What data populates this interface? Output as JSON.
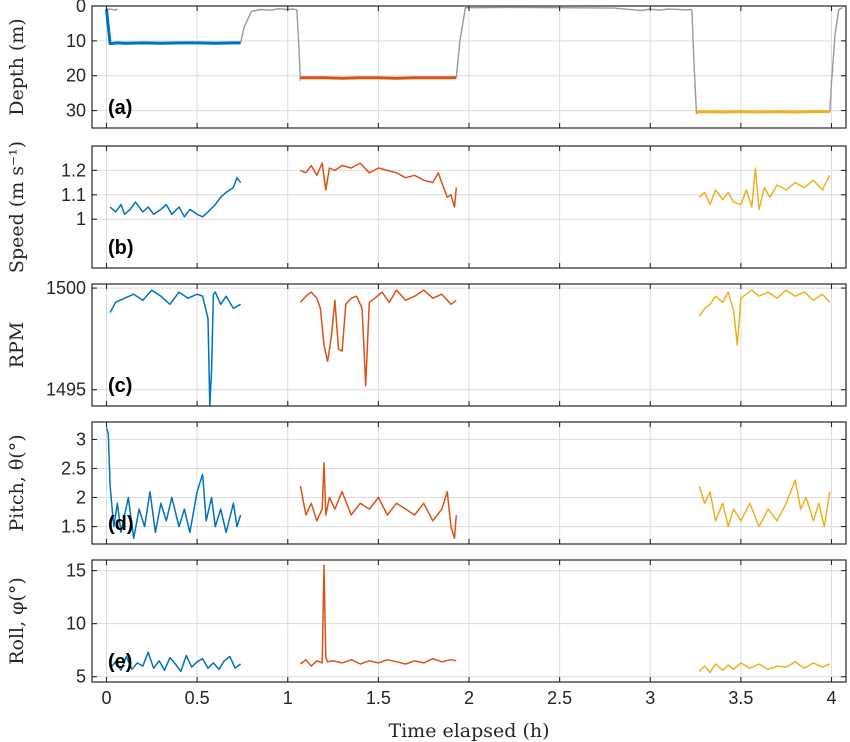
{
  "chart_data": [
    {
      "type": "line",
      "panel_tag": "(a)",
      "ylabel": "Depth (m)",
      "ylim": [
        0,
        35
      ],
      "y_reversed": true,
      "y_ticks": [
        0,
        10,
        20,
        30
      ],
      "y_tick_labels": [
        "0",
        "10",
        "20",
        "30"
      ],
      "series": [
        {
          "color": "#999999",
          "x": [
            0,
            0.01,
            0.02,
            0.05,
            0.06
          ],
          "y": [
            0.7,
            1.0,
            0.9,
            1.2,
            0.8
          ]
        },
        {
          "color": "#999999",
          "x": [
            0.74,
            0.76,
            0.8,
            0.85,
            0.9,
            0.95,
            1.0,
            1.03,
            1.05
          ],
          "y": [
            10.5,
            6,
            1.5,
            1.0,
            1.2,
            0.8,
            1.0,
            0.9,
            1.1
          ]
        },
        {
          "color": "#999999",
          "x": [
            1.05,
            1.06,
            1.07
          ],
          "y": [
            1.0,
            10,
            21.5
          ]
        },
        {
          "color": "#999999",
          "x": [
            1.93,
            1.95,
            1.98,
            2.05,
            2.2,
            2.5,
            2.8,
            2.95,
            3.0,
            3.05,
            3.1,
            3.2,
            3.23
          ],
          "y": [
            20.5,
            10,
            0.5,
            0.5,
            0.4,
            0.5,
            0.6,
            1.3,
            0.9,
            1.2,
            0.9,
            1.1,
            1.0
          ]
        },
        {
          "color": "#999999",
          "x": [
            3.23,
            3.24,
            3.255
          ],
          "y": [
            1.0,
            15,
            31
          ]
        },
        {
          "color": "#999999",
          "x": [
            3.99,
            4.0,
            4.02,
            4.04,
            4.06
          ],
          "y": [
            30.5,
            22,
            8,
            1.0,
            0.5
          ]
        },
        {
          "color": "#0072BD",
          "x": [
            0.0,
            0.02,
            0.06,
            0.1,
            0.2,
            0.3,
            0.4,
            0.5,
            0.6,
            0.7,
            0.74
          ],
          "y": [
            1.0,
            10.8,
            10.6,
            10.7,
            10.6,
            10.7,
            10.6,
            10.6,
            10.7,
            10.6,
            10.6
          ]
        },
        {
          "color": "#D95319",
          "x": [
            1.07,
            1.2,
            1.3,
            1.4,
            1.5,
            1.6,
            1.7,
            1.8,
            1.93
          ],
          "y": [
            20.6,
            20.6,
            20.7,
            20.6,
            20.6,
            20.7,
            20.6,
            20.6,
            20.6
          ]
        },
        {
          "color": "#EDB120",
          "x": [
            3.255,
            3.3,
            3.4,
            3.5,
            3.6,
            3.7,
            3.8,
            3.9,
            3.99
          ],
          "y": [
            30.4,
            30.3,
            30.4,
            30.3,
            30.4,
            30.3,
            30.4,
            30.3,
            30.3
          ]
        }
      ]
    },
    {
      "type": "line",
      "panel_tag": "(b)",
      "ylabel": "Speed (m s⁻¹)",
      "ylim": [
        0.8,
        1.3
      ],
      "y_ticks": [
        1.0,
        1.1,
        1.2
      ],
      "y_tick_labels": [
        "1",
        "1.1",
        "1.2"
      ],
      "series": [
        {
          "color": "#0072BD",
          "x": [
            0.02,
            0.05,
            0.08,
            0.1,
            0.13,
            0.16,
            0.2,
            0.23,
            0.26,
            0.3,
            0.33,
            0.36,
            0.4,
            0.43,
            0.46,
            0.5,
            0.53,
            0.56,
            0.6,
            0.63,
            0.66,
            0.7,
            0.72,
            0.74
          ],
          "y": [
            1.05,
            1.03,
            1.06,
            1.02,
            1.04,
            1.07,
            1.03,
            1.05,
            1.02,
            1.04,
            1.06,
            1.02,
            1.05,
            1.01,
            1.04,
            1.02,
            1.01,
            1.03,
            1.06,
            1.09,
            1.11,
            1.13,
            1.17,
            1.15
          ]
        },
        {
          "color": "#D95319",
          "x": [
            1.07,
            1.1,
            1.13,
            1.16,
            1.19,
            1.21,
            1.23,
            1.26,
            1.3,
            1.35,
            1.4,
            1.45,
            1.5,
            1.55,
            1.6,
            1.65,
            1.7,
            1.75,
            1.8,
            1.83,
            1.86,
            1.88,
            1.9,
            1.92,
            1.93
          ],
          "y": [
            1.2,
            1.19,
            1.22,
            1.18,
            1.23,
            1.12,
            1.21,
            1.2,
            1.22,
            1.21,
            1.23,
            1.19,
            1.21,
            1.2,
            1.19,
            1.17,
            1.18,
            1.16,
            1.15,
            1.19,
            1.13,
            1.09,
            1.1,
            1.05,
            1.13
          ]
        },
        {
          "color": "#EDB120",
          "x": [
            3.27,
            3.3,
            3.33,
            3.36,
            3.4,
            3.43,
            3.46,
            3.5,
            3.53,
            3.56,
            3.58,
            3.6,
            3.63,
            3.66,
            3.7,
            3.75,
            3.8,
            3.85,
            3.9,
            3.95,
            3.99
          ],
          "y": [
            1.09,
            1.11,
            1.06,
            1.12,
            1.08,
            1.11,
            1.07,
            1.06,
            1.12,
            1.05,
            1.21,
            1.04,
            1.13,
            1.09,
            1.14,
            1.12,
            1.15,
            1.13,
            1.16,
            1.12,
            1.18
          ]
        }
      ]
    },
    {
      "type": "line",
      "panel_tag": "(c)",
      "ylabel": "RPM",
      "ylim": [
        1494.2,
        1500.2
      ],
      "y_ticks": [
        1495,
        1500
      ],
      "y_tick_labels": [
        "1495",
        "1500"
      ],
      "series": [
        {
          "color": "#0072BD",
          "x": [
            0.02,
            0.05,
            0.1,
            0.15,
            0.2,
            0.25,
            0.3,
            0.35,
            0.4,
            0.45,
            0.5,
            0.53,
            0.56,
            0.57,
            0.58,
            0.59,
            0.6,
            0.63,
            0.66,
            0.7,
            0.74
          ],
          "y": [
            1498.8,
            1499.3,
            1499.5,
            1499.7,
            1499.4,
            1499.9,
            1499.6,
            1499.2,
            1499.8,
            1499.5,
            1499.7,
            1499.6,
            1498.5,
            1494.2,
            1496.0,
            1499.7,
            1499.8,
            1499.2,
            1499.6,
            1499.0,
            1499.2
          ]
        },
        {
          "color": "#D95319",
          "x": [
            1.07,
            1.1,
            1.13,
            1.16,
            1.18,
            1.2,
            1.22,
            1.24,
            1.26,
            1.28,
            1.3,
            1.32,
            1.35,
            1.38,
            1.41,
            1.43,
            1.45,
            1.48,
            1.52,
            1.56,
            1.6,
            1.65,
            1.7,
            1.75,
            1.8,
            1.85,
            1.9,
            1.93
          ],
          "y": [
            1499.3,
            1499.6,
            1499.8,
            1499.5,
            1499.0,
            1497.2,
            1496.4,
            1497.6,
            1499.4,
            1497.0,
            1496.9,
            1499.2,
            1499.5,
            1499.6,
            1499.0,
            1495.2,
            1499.3,
            1499.5,
            1499.8,
            1499.3,
            1499.9,
            1499.4,
            1499.6,
            1499.9,
            1499.5,
            1499.7,
            1499.2,
            1499.4
          ]
        },
        {
          "color": "#EDB120",
          "x": [
            3.27,
            3.3,
            3.33,
            3.36,
            3.4,
            3.43,
            3.46,
            3.48,
            3.5,
            3.53,
            3.56,
            3.6,
            3.65,
            3.7,
            3.75,
            3.8,
            3.85,
            3.9,
            3.95,
            3.99
          ],
          "y": [
            1498.6,
            1499.0,
            1499.2,
            1499.6,
            1499.3,
            1499.8,
            1498.9,
            1497.2,
            1499.5,
            1499.7,
            1499.9,
            1499.6,
            1499.8,
            1499.5,
            1499.9,
            1499.6,
            1499.8,
            1499.4,
            1499.7,
            1499.3
          ]
        }
      ]
    },
    {
      "type": "line",
      "panel_tag": "(d)",
      "ylabel": "Pitch, θ(°)",
      "ylim": [
        1.2,
        3.3
      ],
      "y_ticks": [
        1.5,
        2.0,
        2.5,
        3.0
      ],
      "y_tick_labels": [
        "1.5",
        "2",
        "2.5",
        "3"
      ],
      "series": [
        {
          "color": "#0072BD",
          "x": [
            0.0,
            0.01,
            0.02,
            0.04,
            0.06,
            0.08,
            0.1,
            0.12,
            0.15,
            0.18,
            0.21,
            0.24,
            0.27,
            0.3,
            0.33,
            0.36,
            0.4,
            0.43,
            0.46,
            0.5,
            0.53,
            0.55,
            0.58,
            0.6,
            0.63,
            0.66,
            0.7,
            0.72,
            0.74
          ],
          "y": [
            3.2,
            3.1,
            2.2,
            1.5,
            1.9,
            1.4,
            1.7,
            2.0,
            1.3,
            1.8,
            1.5,
            2.1,
            1.4,
            1.9,
            1.6,
            2.0,
            1.5,
            1.8,
            1.4,
            2.1,
            2.4,
            1.6,
            2.0,
            1.5,
            1.8,
            1.4,
            1.9,
            1.5,
            1.7
          ]
        },
        {
          "color": "#D95319",
          "x": [
            1.07,
            1.1,
            1.13,
            1.16,
            1.19,
            1.2,
            1.21,
            1.23,
            1.26,
            1.3,
            1.35,
            1.4,
            1.45,
            1.5,
            1.55,
            1.6,
            1.65,
            1.7,
            1.75,
            1.8,
            1.85,
            1.88,
            1.9,
            1.92,
            1.93
          ],
          "y": [
            2.2,
            1.7,
            1.9,
            1.6,
            1.8,
            2.6,
            1.7,
            2.0,
            1.8,
            2.1,
            1.7,
            1.9,
            1.8,
            2.0,
            1.7,
            1.9,
            1.8,
            1.7,
            1.9,
            1.6,
            1.8,
            2.1,
            1.5,
            1.3,
            1.7
          ]
        },
        {
          "color": "#EDB120",
          "x": [
            3.27,
            3.3,
            3.33,
            3.36,
            3.4,
            3.43,
            3.46,
            3.5,
            3.55,
            3.6,
            3.65,
            3.7,
            3.75,
            3.8,
            3.83,
            3.86,
            3.9,
            3.93,
            3.96,
            3.99
          ],
          "y": [
            2.2,
            1.9,
            2.1,
            1.6,
            1.9,
            1.5,
            1.8,
            1.6,
            1.9,
            1.5,
            1.8,
            1.6,
            1.9,
            2.3,
            1.8,
            2.0,
            1.6,
            1.9,
            1.5,
            2.1
          ]
        }
      ]
    },
    {
      "type": "line",
      "panel_tag": "(e)",
      "ylabel": "Roll, φ(°)",
      "xlabel": "Time elapsed (h)",
      "ylim": [
        4.5,
        16
      ],
      "xlim": [
        -0.08,
        4.08
      ],
      "x_ticks": [
        0,
        0.5,
        1,
        1.5,
        2,
        2.5,
        3,
        3.5,
        4
      ],
      "x_tick_labels": [
        "0",
        "0.5",
        "1",
        "1.5",
        "2",
        "2.5",
        "3",
        "3.5",
        "4"
      ],
      "y_ticks": [
        5,
        10,
        15
      ],
      "y_tick_labels": [
        "5",
        "10",
        "15"
      ],
      "series": [
        {
          "color": "#0072BD",
          "x": [
            0.02,
            0.05,
            0.08,
            0.11,
            0.14,
            0.17,
            0.2,
            0.23,
            0.26,
            0.29,
            0.32,
            0.35,
            0.38,
            0.41,
            0.44,
            0.47,
            0.5,
            0.53,
            0.56,
            0.59,
            0.62,
            0.65,
            0.68,
            0.71,
            0.74
          ],
          "y": [
            5.8,
            6.4,
            5.6,
            6.9,
            5.7,
            6.3,
            6.0,
            7.3,
            5.8,
            6.5,
            5.6,
            6.8,
            6.2,
            5.5,
            7.0,
            5.9,
            6.4,
            6.7,
            5.8,
            6.3,
            5.7,
            6.5,
            6.9,
            5.8,
            6.2
          ]
        },
        {
          "color": "#D95319",
          "x": [
            1.07,
            1.1,
            1.13,
            1.16,
            1.19,
            1.2,
            1.21,
            1.22,
            1.25,
            1.3,
            1.35,
            1.4,
            1.45,
            1.5,
            1.55,
            1.6,
            1.65,
            1.7,
            1.75,
            1.8,
            1.85,
            1.9,
            1.93
          ],
          "y": [
            6.2,
            6.6,
            6.0,
            6.5,
            6.3,
            15.5,
            6.8,
            6.4,
            6.5,
            6.3,
            6.6,
            6.2,
            6.5,
            6.3,
            6.6,
            6.4,
            6.2,
            6.5,
            6.3,
            6.7,
            6.4,
            6.6,
            6.5
          ]
        },
        {
          "color": "#EDB120",
          "x": [
            3.27,
            3.3,
            3.33,
            3.36,
            3.4,
            3.43,
            3.46,
            3.5,
            3.55,
            3.6,
            3.65,
            3.7,
            3.75,
            3.8,
            3.85,
            3.9,
            3.95,
            3.99
          ],
          "y": [
            5.5,
            6.0,
            5.4,
            6.2,
            5.6,
            6.1,
            5.7,
            6.3,
            5.8,
            6.2,
            5.7,
            6.0,
            5.9,
            6.4,
            5.8,
            6.3,
            5.9,
            6.2
          ]
        }
      ]
    }
  ]
}
